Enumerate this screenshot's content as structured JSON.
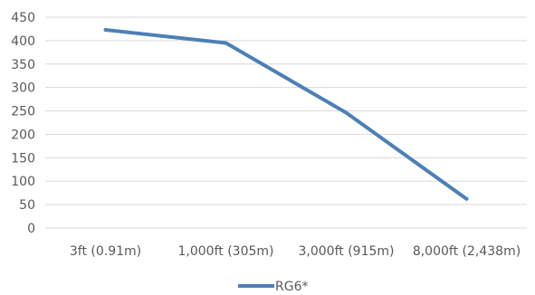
{
  "chart_data": {
    "type": "line",
    "categories": [
      "3ft (0.91m)",
      "1,000ft (305m)",
      "3,000ft (915m)",
      "8,000ft (2,438m)"
    ],
    "series": [
      {
        "name": "RG6*",
        "values": [
          423,
          395,
          246,
          62
        ],
        "color": "#4e80b5"
      }
    ],
    "ylim": [
      0,
      450
    ],
    "yticks": [
      0,
      50,
      100,
      150,
      200,
      250,
      300,
      350,
      400,
      450
    ],
    "grid": true,
    "legend": "bottom"
  }
}
